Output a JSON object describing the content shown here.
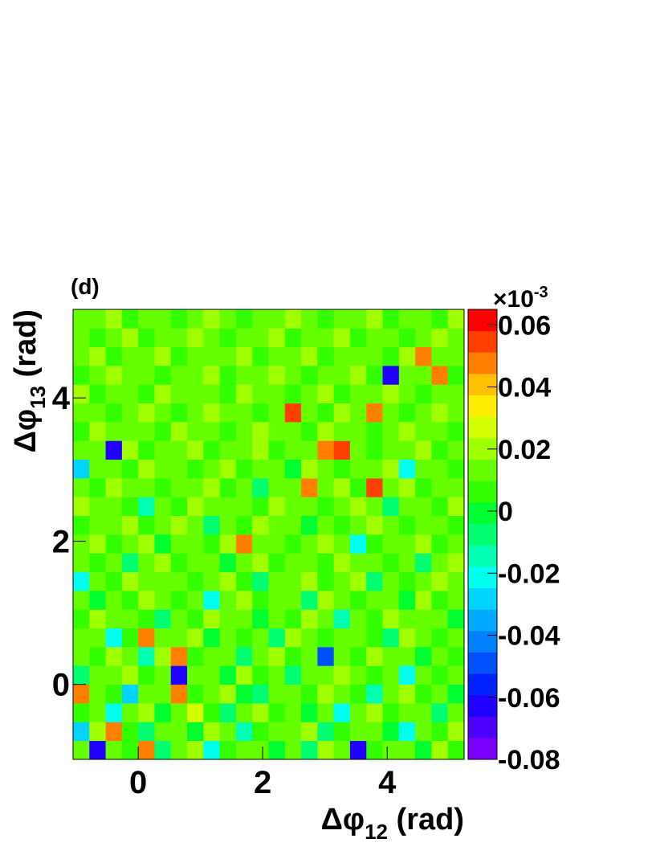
{
  "chart_data": {
    "type": "heatmap",
    "panel_label": "(d)",
    "xlabel_parts": [
      "Δφ",
      "12",
      " (rad)"
    ],
    "ylabel_parts": [
      "Δφ",
      "13",
      " (rad)"
    ],
    "colorbar_multiplier": [
      "×10",
      "-3"
    ],
    "xlim": [
      -1.047,
      5.236
    ],
    "ylim": [
      -1.047,
      5.236
    ],
    "xticks": [
      0,
      2,
      4
    ],
    "yticks": [
      0,
      2,
      4
    ],
    "zlim": [
      -0.08,
      0.065
    ],
    "zticks": [
      -0.08,
      -0.06,
      -0.04,
      -0.02,
      0,
      0.02,
      0.04,
      0.06
    ],
    "colorscale": [
      "#7a00ff",
      "#4d00ff",
      "#2200ff",
      "#0022ff",
      "#0050ff",
      "#0080ff",
      "#00aaff",
      "#00d4ff",
      "#00ffee",
      "#00ffb0",
      "#00ff70",
      "#00ff30",
      "#33ff00",
      "#66ff00",
      "#a0ff00",
      "#d4ff00",
      "#ffee00",
      "#ffc000",
      "#ff8000",
      "#ff4000",
      "#ff0000"
    ],
    "z": [
      [
        0.01,
        -0.06,
        0.015,
        0.005,
        0.05,
        -0.01,
        0.01,
        0.02,
        -0.02,
        0.005,
        0.01,
        0.015,
        0,
        0.01,
        -0.005,
        0.02,
        0.01,
        -0.06,
        0.005,
        0.015,
        0.01,
        0,
        0.02,
        0.005
      ],
      [
        -0.03,
        0.02,
        0.05,
        0.005,
        -0.01,
        0.015,
        0.01,
        0,
        0.02,
        0.01,
        -0.015,
        0.005,
        0.015,
        0.01,
        0.02,
        -0.005,
        0.005,
        0.01,
        0.015,
        0,
        -0.02,
        0.01,
        0.005,
        0.02
      ],
      [
        0.005,
        0.01,
        -0.02,
        0.015,
        0.02,
        0,
        0.01,
        0.025,
        0.005,
        -0.01,
        0.01,
        0.02,
        0.005,
        0.01,
        0,
        0.015,
        -0.02,
        0.01,
        0.02,
        0.005,
        0.01,
        0.015,
        -0.01,
        0.01
      ],
      [
        0.05,
        0.01,
        0.005,
        -0.025,
        0.01,
        0.015,
        0.05,
        0.005,
        0.01,
        0.02,
        0,
        -0.01,
        0.01,
        0.015,
        0.005,
        0.02,
        0.01,
        0.005,
        -0.015,
        0.01,
        0.02,
        0.005,
        0.01,
        0
      ],
      [
        -0.01,
        0.015,
        0.01,
        0.02,
        0.005,
        0.01,
        -0.06,
        0.01,
        0.015,
        0,
        0.02,
        0.005,
        0.01,
        -0.005,
        0.01,
        0.015,
        0.02,
        0.01,
        0.005,
        0.01,
        -0.02,
        0.015,
        0.005,
        0.01
      ],
      [
        0.01,
        0.005,
        0.02,
        0.01,
        -0.015,
        0.02,
        0.05,
        0.005,
        0.01,
        0.015,
        -0.01,
        0.01,
        0.02,
        0.005,
        0.015,
        -0.05,
        0.01,
        0.005,
        0.02,
        0.01,
        0.015,
        0,
        0.01,
        0.005
      ],
      [
        0.015,
        0.01,
        -0.02,
        0.005,
        0.05,
        0.01,
        0.015,
        0.02,
        0,
        0.01,
        0.005,
        0.015,
        -0.01,
        0.02,
        0.01,
        0.005,
        0.01,
        0.015,
        0.005,
        -0.01,
        0.02,
        0.01,
        0.005,
        0.015
      ],
      [
        0.005,
        0.02,
        0.01,
        0.015,
        0.005,
        -0.01,
        0.01,
        0.005,
        0.02,
        0.015,
        0.01,
        0,
        0.01,
        0.005,
        0.02,
        0.01,
        -0.015,
        0.01,
        0.005,
        0.02,
        0.01,
        0.015,
        0.01,
        0
      ],
      [
        0.01,
        0,
        0.015,
        0.005,
        0.02,
        0.01,
        0.005,
        0.015,
        -0.02,
        0.01,
        0.02,
        0.005,
        0.01,
        0.015,
        -0.005,
        0.02,
        0.01,
        0.005,
        0.015,
        0.01,
        0,
        0.02,
        0.005,
        0.01
      ],
      [
        -0.02,
        0.01,
        0.005,
        0.02,
        0.01,
        0.015,
        0.01,
        0.005,
        0.01,
        0.02,
        0.005,
        -0.01,
        0.015,
        0.01,
        0.02,
        0.005,
        0.01,
        0.02,
        -0.01,
        0.015,
        0.005,
        0.01,
        0.02,
        0.015
      ],
      [
        0.015,
        0.005,
        0.01,
        -0.01,
        0.015,
        0.02,
        0.005,
        0.01,
        0.015,
        0,
        0.01,
        0.02,
        0.005,
        0.015,
        0.01,
        0.005,
        0.02,
        0.01,
        0.015,
        0.005,
        0.01,
        -0.005,
        0.01,
        0.02
      ],
      [
        0.01,
        0.02,
        0.005,
        0.01,
        0.02,
        0,
        0.015,
        0.01,
        0.005,
        0.02,
        0.045,
        0.01,
        0.015,
        0.005,
        0.01,
        0.02,
        0.01,
        -0.02,
        0.005,
        0.01,
        0.015,
        0.02,
        0.005,
        0.01
      ],
      [
        0.005,
        0.01,
        0.015,
        0.02,
        0.005,
        0.01,
        0.02,
        0.015,
        -0.01,
        0.01,
        0.005,
        0.02,
        0.01,
        0.015,
        0,
        0.01,
        0.005,
        0.015,
        0.02,
        0.01,
        0.005,
        0.01,
        0.015,
        0.005
      ],
      [
        0.02,
        0.015,
        0.01,
        0.005,
        -0.015,
        0.01,
        0.005,
        0.02,
        0.01,
        0.015,
        0.01,
        0.005,
        0.02,
        0.01,
        0.015,
        0.005,
        0.01,
        0.02,
        0.01,
        -0.01,
        0.015,
        0.01,
        0.005,
        0.02
      ],
      [
        0.01,
        0.005,
        0.02,
        0.01,
        0.015,
        0.005,
        0.01,
        0.015,
        0.02,
        0.005,
        0.01,
        -0.01,
        0.015,
        0.01,
        0.05,
        0.01,
        0.02,
        0.005,
        0.055,
        0.01,
        0.02,
        0.005,
        0.01,
        0.015
      ],
      [
        -0.03,
        0.015,
        0.01,
        0.005,
        0.02,
        0.01,
        0.015,
        0.005,
        0.01,
        0.02,
        0.005,
        0.015,
        0.01,
        0,
        0.02,
        0.01,
        0.005,
        0.015,
        0.01,
        0.02,
        -0.02,
        0.01,
        0.015,
        0.005
      ],
      [
        0.015,
        0.01,
        -0.06,
        0.02,
        0.005,
        0.015,
        0.01,
        0.02,
        0.005,
        0.01,
        0.015,
        0.02,
        0.005,
        0.01,
        0.015,
        0.05,
        0.055,
        0.01,
        0.005,
        0.015,
        0.01,
        0.02,
        0.005,
        0.01
      ],
      [
        0.005,
        0.02,
        0.01,
        0.015,
        0.01,
        0.005,
        0.02,
        0.01,
        0.015,
        0.005,
        0.01,
        0.02,
        0.015,
        0.01,
        0.005,
        0.02,
        0.01,
        0.015,
        0.005,
        0.01,
        0.02,
        0.01,
        0.015,
        0.005
      ],
      [
        0.01,
        0.015,
        0.005,
        0.01,
        0.02,
        0.015,
        0.005,
        0.01,
        0.02,
        0.01,
        0.015,
        0.005,
        0.01,
        0.055,
        0.01,
        0.005,
        0.02,
        0.01,
        0.05,
        0.015,
        0.005,
        0.01,
        0.02,
        0.01
      ],
      [
        0.02,
        0.005,
        0.015,
        0.01,
        0.005,
        0.02,
        0.01,
        0.015,
        0.01,
        0.005,
        0.02,
        0.01,
        0.015,
        0.005,
        0.01,
        0.02,
        0.005,
        0.015,
        0.01,
        0.02,
        0.01,
        0.005,
        0.015,
        0.01
      ],
      [
        0.005,
        0.01,
        0.02,
        0.015,
        0.01,
        0.005,
        0.015,
        0.01,
        0.02,
        0.005,
        0.01,
        0.015,
        0.02,
        0.01,
        0.005,
        0.015,
        0.01,
        0.02,
        0.005,
        -0.06,
        0.015,
        0.01,
        0.05,
        0.005
      ],
      [
        0.01,
        0.02,
        0.005,
        0.01,
        0.015,
        0.02,
        0.005,
        0.01,
        0.015,
        0.01,
        0.02,
        0.005,
        0.01,
        0.015,
        0.02,
        0.005,
        0.01,
        0.015,
        0.01,
        0.005,
        0.02,
        0.05,
        0.01,
        0.015
      ],
      [
        0.015,
        0.005,
        0.01,
        0.02,
        0.005,
        0.01,
        0.015,
        0.02,
        0.01,
        0.005,
        0.015,
        0.01,
        0.02,
        0.005,
        0.01,
        0.015,
        0.02,
        0.005,
        0.01,
        0.015,
        0.005,
        0.01,
        0.02,
        0.01
      ],
      [
        0.01,
        0.015,
        0.02,
        0.005,
        0.01,
        0.015,
        0.005,
        0.01,
        0.02,
        0.015,
        0.005,
        0.01,
        0.015,
        0.02,
        0.01,
        0.005,
        0.015,
        0.01,
        0.02,
        0.005,
        0.01,
        0.015,
        0.005,
        0.02
      ]
    ]
  }
}
